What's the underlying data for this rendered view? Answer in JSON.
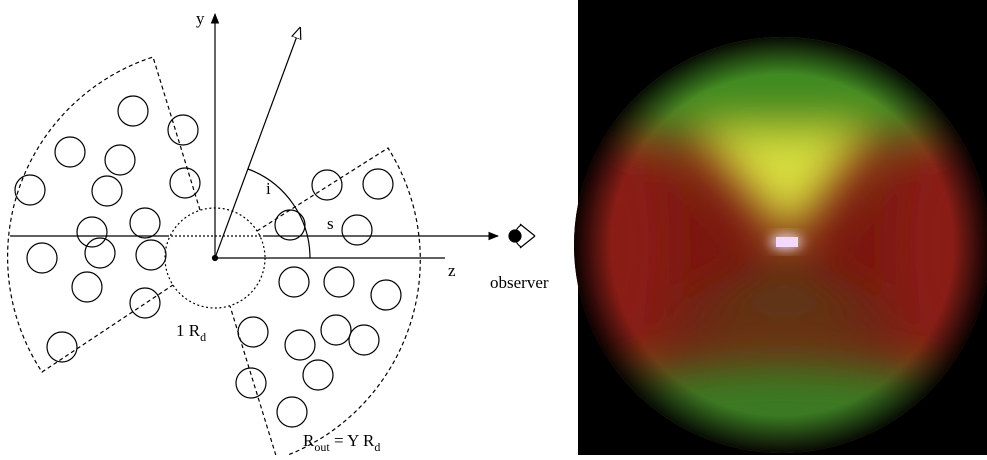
{
  "labels": {
    "y": "y",
    "z": "z",
    "i": "i",
    "s": "s",
    "observer": "observer",
    "inner_radius": {
      "main": "1 R",
      "sub": "d"
    },
    "outer_radius": {
      "r": "R",
      "r_sub": "out",
      "rest": " = Y R",
      "rest_sub": "d"
    }
  }
}
